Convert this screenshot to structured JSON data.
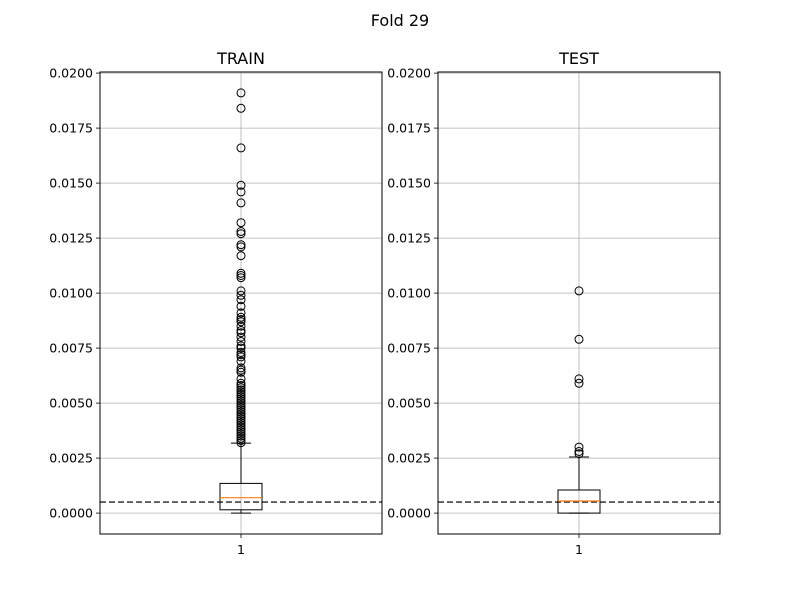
{
  "figure": {
    "suptitle": "Fold 29"
  },
  "chart_data": [
    {
      "type": "box",
      "title": "TRAIN",
      "xlabel": "",
      "ylabel": "",
      "categories": [
        "1"
      ],
      "ylim": [
        -0.00095,
        0.02005
      ],
      "yticks": [
        0.0,
        0.0025,
        0.005,
        0.0075,
        0.01,
        0.0125,
        0.015,
        0.0175,
        0.02
      ],
      "ytick_labels": [
        "0.0000",
        "0.0025",
        "0.0050",
        "0.0075",
        "0.0100",
        "0.0125",
        "0.0150",
        "0.0175",
        "0.0200"
      ],
      "grid": true,
      "box": {
        "whisker_low": 0.0,
        "q1": 0.00015,
        "median": 0.0007,
        "q3": 0.00135,
        "whisker_high": 0.00318
      },
      "threshold": 0.0005,
      "outliers": [
        0.0191,
        0.0184,
        0.0166,
        0.0149,
        0.0146,
        0.0141,
        0.0132,
        0.0128,
        0.0127,
        0.0122,
        0.0121,
        0.0117,
        0.0109,
        0.0108,
        0.0107,
        0.0101,
        0.0099,
        0.0097,
        0.0094,
        0.0091,
        0.0089,
        0.0088,
        0.0087,
        0.0085,
        0.0083,
        0.0082,
        0.008,
        0.0078,
        0.0076,
        0.0075,
        0.0073,
        0.0072,
        0.0071,
        0.0069,
        0.0066,
        0.0065,
        0.0064,
        0.0061,
        0.0059,
        0.0058,
        0.0057,
        0.0056,
        0.0055,
        0.0054,
        0.0053,
        0.0052,
        0.0051,
        0.005,
        0.0049,
        0.0048,
        0.0047,
        0.0046,
        0.0045,
        0.0044,
        0.0043,
        0.0042,
        0.0041,
        0.004,
        0.0039,
        0.0038,
        0.0037,
        0.0036,
        0.0035,
        0.0034,
        0.0033,
        0.0032
      ]
    },
    {
      "type": "box",
      "title": "TEST",
      "xlabel": "",
      "ylabel": "",
      "categories": [
        "1"
      ],
      "ylim": [
        -0.00095,
        0.02005
      ],
      "yticks": [
        0.0,
        0.0025,
        0.005,
        0.0075,
        0.01,
        0.0125,
        0.015,
        0.0175,
        0.02
      ],
      "ytick_labels": [
        "0.0000",
        "0.0025",
        "0.0050",
        "0.0075",
        "0.0100",
        "0.0125",
        "0.0150",
        "0.0175",
        "0.0200"
      ],
      "grid": true,
      "box": {
        "whisker_low": 0.0,
        "q1": 0.0,
        "median": 0.00055,
        "q3": 0.00105,
        "whisker_high": 0.00255
      },
      "threshold": 0.0005,
      "outliers": [
        0.0101,
        0.0079,
        0.0061,
        0.0059,
        0.003,
        0.0028,
        0.0027
      ]
    }
  ]
}
